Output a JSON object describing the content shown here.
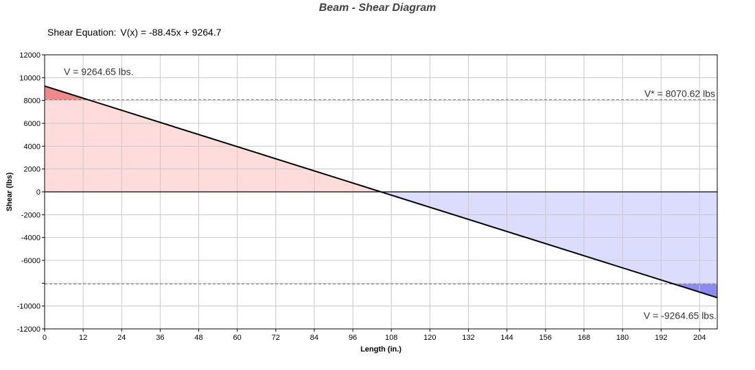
{
  "chart_data": {
    "type": "area",
    "title": "Beam - Shear Diagram",
    "equation_label": "Shear Equation:",
    "equation": "V(x) = -88.45x + 9264.7",
    "xlabel": "Length (in.)",
    "ylabel": "Shear (lbs)",
    "xlim": [
      0,
      209.5
    ],
    "ylim": [
      -12000,
      12000
    ],
    "x_ticks": [
      0,
      12,
      24,
      36,
      48,
      60,
      72,
      84,
      96,
      108,
      120,
      132,
      144,
      156,
      168,
      180,
      192,
      204
    ],
    "y_ticks": [
      12000,
      10000,
      8000,
      6000,
      4000,
      2000,
      0,
      -2000,
      -4000,
      -6000,
      -8000,
      -10000,
      -12000
    ],
    "y_tick_labels": [
      "12000",
      "10000",
      "8000",
      "6000",
      "4000",
      "2000",
      "0",
      "-2000",
      "-4000",
      "-6000",
      "",
      "-10000",
      "-12000"
    ],
    "grid": true,
    "series": [
      {
        "x": [
          0,
          209.5
        ],
        "y": [
          9264.65,
          -9264.65
        ]
      }
    ],
    "thresholds": [
      8070.62,
      -8070.62
    ],
    "annotations": {
      "v_max": "V = 9264.65 lbs.",
      "v_allow": "V* = 8070.62 lbs",
      "v_min": "V = -9264.65 lbs."
    },
    "colors": {
      "positive_fill": "#ffdcdc",
      "positive_over": "#f08a8a",
      "negative_fill": "#dcdcff",
      "negative_over": "#8a8af0",
      "line": "#000000",
      "grid": "#c8c8c8",
      "threshold": "#808080"
    }
  }
}
